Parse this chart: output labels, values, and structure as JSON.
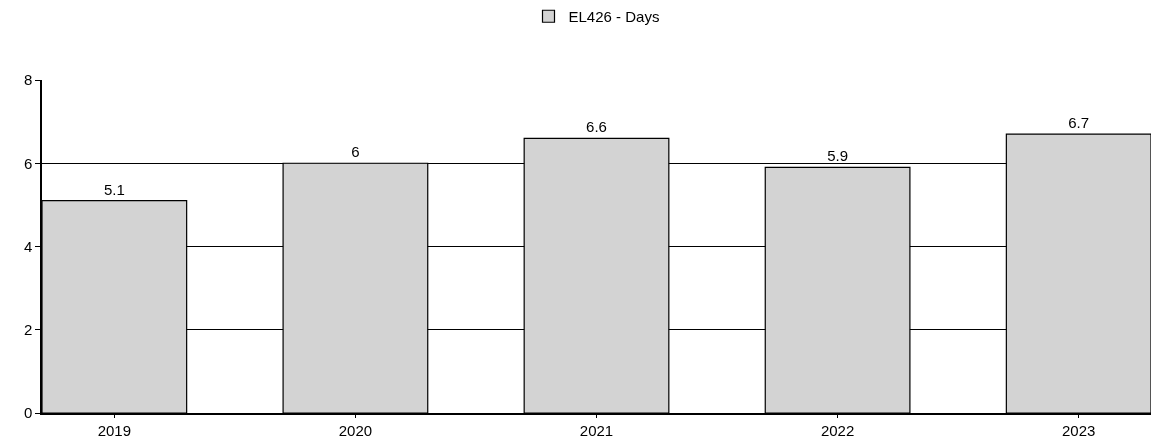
{
  "chart_data": {
    "type": "bar",
    "categories": [
      "2019",
      "2020",
      "2021",
      "2022",
      "2023"
    ],
    "series": [
      {
        "name": "EL426 - Days",
        "color": "#d3d3d3",
        "values": [
          5.1,
          6,
          6.6,
          5.9,
          6.7
        ]
      }
    ],
    "ylim": [
      0,
      8
    ],
    "yticks": [
      0,
      2,
      4,
      6,
      8
    ],
    "grid": "y",
    "legend": "top",
    "data_labels": true
  }
}
